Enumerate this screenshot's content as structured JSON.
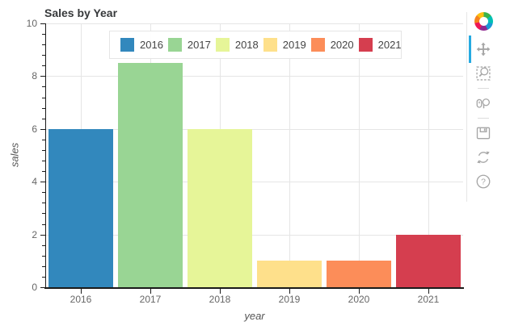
{
  "title": "Sales by Year",
  "chart_data": {
    "type": "bar",
    "title": "Sales by Year",
    "categories": [
      "2016",
      "2017",
      "2018",
      "2019",
      "2020",
      "2021"
    ],
    "values": [
      6,
      8.5,
      6,
      1,
      1,
      2
    ],
    "colors": [
      "#3288bd",
      "#99d594",
      "#e6f598",
      "#fee08b",
      "#fc8d59",
      "#d53e4f"
    ],
    "xlabel": "year",
    "ylabel": "sales",
    "ylim": [
      0,
      10
    ],
    "yticks": [
      0,
      2,
      4,
      6,
      8,
      10
    ],
    "minor_tick_step": 0.4,
    "grid": true,
    "legend_position": "top-center",
    "legend_orientation": "horizontal"
  },
  "legend": {
    "items": [
      {
        "label": "2016",
        "color": "#3288bd"
      },
      {
        "label": "2017",
        "color": "#99d594"
      },
      {
        "label": "2018",
        "color": "#e6f598"
      },
      {
        "label": "2019",
        "color": "#fee08b"
      },
      {
        "label": "2020",
        "color": "#fc8d59"
      },
      {
        "label": "2021",
        "color": "#d53e4f"
      }
    ]
  },
  "toolbar": {
    "logo": "bokeh-logo",
    "active_color": "#26aae1",
    "icon_color": "#a6a6a6",
    "tools": [
      {
        "name": "pan",
        "active": true
      },
      {
        "name": "box-zoom",
        "active": false
      },
      {
        "name": "wheel-zoom",
        "active": false
      },
      {
        "name": "save",
        "active": false
      },
      {
        "name": "reset",
        "active": false
      },
      {
        "name": "help",
        "active": false
      }
    ],
    "separators_after": [
      "box-zoom",
      "wheel-zoom"
    ]
  }
}
